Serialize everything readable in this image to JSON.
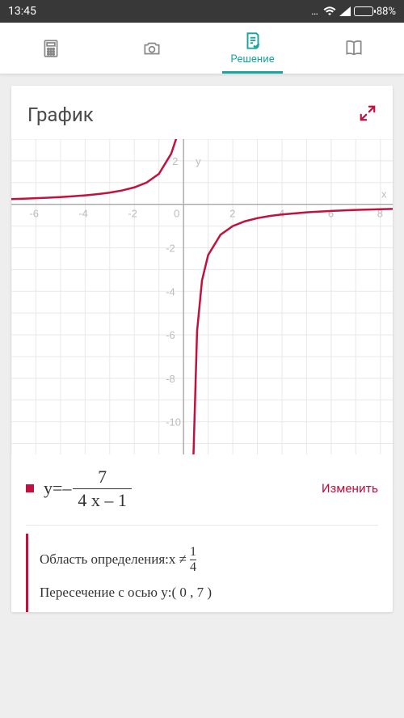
{
  "status": {
    "time": "13:45",
    "dots": "…",
    "battery_pct": "88%",
    "battery_fill_pct": 88
  },
  "tabs": {
    "calculator": {
      "label": ""
    },
    "camera": {
      "label": ""
    },
    "solution": {
      "label": "Решение"
    },
    "book": {
      "label": ""
    }
  },
  "card": {
    "title": "График",
    "expand_color": "#c3113f"
  },
  "chart": {
    "type": "line",
    "xlim": [
      -7,
      8.5
    ],
    "ylim": [
      -11.5,
      3
    ],
    "xticks": [
      -6,
      -4,
      -2,
      0,
      2,
      4,
      6,
      8
    ],
    "yticks": [
      2,
      -2,
      -4,
      -6,
      -8,
      -10
    ],
    "grid_color": "#e8e8e8",
    "axis_color": "#a8a8a8",
    "axis_label_color": "#bcbcbc",
    "axis_label_fontsize": 13,
    "curve_color": "#c3113f",
    "curve_width": 2.5,
    "x_label": "x",
    "y_label": "y",
    "asymptote_x": 0.25,
    "series_left_x": [
      -7,
      -6.5,
      -6,
      -5.5,
      -5,
      -4.5,
      -4,
      -3.5,
      -3,
      -2.5,
      -2,
      -1.5,
      -1,
      -0.5,
      -0.25,
      -0.1,
      -0.02,
      0.02,
      0.1,
      0.18,
      0.22,
      0.24
    ],
    "series_right_x": [
      0.26,
      0.28,
      0.32,
      0.4,
      0.55,
      0.75,
      1,
      1.5,
      2,
      2.5,
      3,
      3.5,
      4,
      5,
      6,
      7,
      8,
      8.5
    ]
  },
  "equation": {
    "lhs": "y",
    "eq": " = ",
    "sign": "–",
    "numerator": "7",
    "denominator": "4 x – 1",
    "edit_label": "Изменить"
  },
  "info": {
    "domain_label": "Область определения: ",
    "domain_var": "x ≠",
    "domain_frac_num": "1",
    "domain_frac_den": "4",
    "intercept_label": "Пересечение с осью y: ",
    "intercept_value": "( 0 , 7 )"
  },
  "colors": {
    "accent_teal": "#1aa6a0",
    "accent_red": "#c3113f",
    "bg": "#eeeeee",
    "card_bg": "#ffffff"
  }
}
